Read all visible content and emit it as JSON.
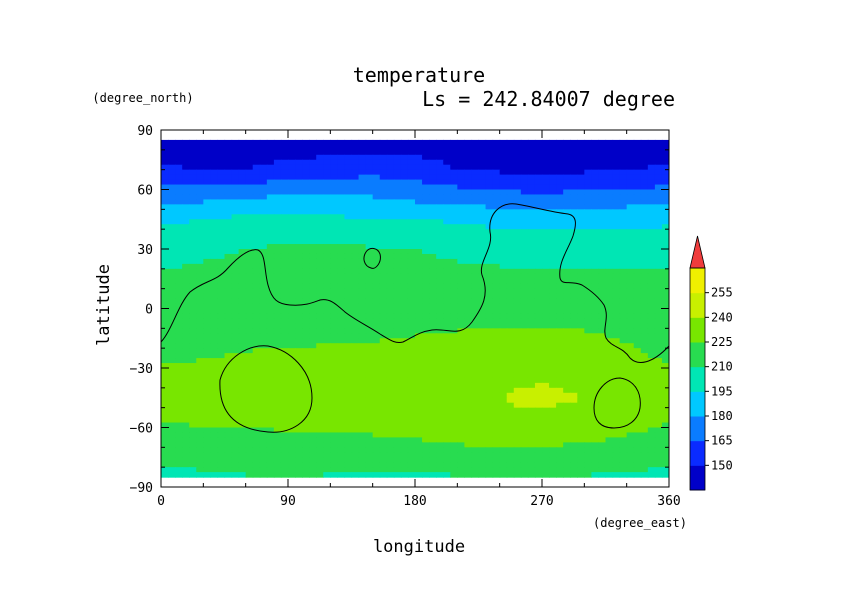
{
  "chart_data": {
    "type": "heatmap",
    "title": "temperature",
    "subtitle": "Ls = 242.84007 degree",
    "xlabel": "longitude",
    "ylabel": "latitude",
    "xunit": "(degree_east)",
    "yunit": "(degree_north)",
    "xlim": [
      0,
      360
    ],
    "ylim": [
      -90,
      90
    ],
    "xticks": [
      0,
      90,
      180,
      270,
      360
    ],
    "yticks": [
      -90,
      -60,
      -30,
      0,
      30,
      60,
      90
    ],
    "colorbar": {
      "levels": [
        150,
        165,
        180,
        195,
        210,
        225,
        240,
        255
      ],
      "labels": [
        "150",
        "165",
        "180",
        "195",
        "210",
        "225",
        "240",
        "255"
      ],
      "extend": "max"
    },
    "grid": false,
    "z_approx": {
      "description_free_samples_lon": [
        0,
        30,
        60,
        90,
        120,
        150,
        180,
        210,
        240,
        270,
        300,
        330,
        360
      ],
      "lat": [
        85,
        70,
        55,
        45,
        30,
        15,
        0,
        -15,
        -30,
        -45,
        -60,
        -75,
        -85
      ],
      "values": [
        [
          140,
          140,
          140,
          140,
          140,
          140,
          140,
          140,
          140,
          140,
          140,
          140,
          140
        ],
        [
          152,
          150,
          150,
          155,
          158,
          160,
          158,
          150,
          148,
          146,
          148,
          150,
          152
        ],
        [
          175,
          178,
          182,
          183,
          183,
          182,
          178,
          175,
          172,
          170,
          172,
          174,
          175
        ],
        [
          192,
          195,
          198,
          198,
          197,
          196,
          195,
          193,
          190,
          188,
          188,
          190,
          192
        ],
        [
          205,
          207,
          210,
          212,
          212,
          211,
          210,
          208,
          207,
          206,
          206,
          206,
          205
        ],
        [
          212,
          214,
          216,
          217,
          216,
          215,
          214,
          213,
          212,
          212,
          212,
          212,
          212
        ],
        [
          214,
          212,
          214,
          216,
          214,
          213,
          215,
          216,
          217,
          217,
          216,
          216,
          214
        ],
        [
          218,
          220,
          222,
          223,
          224,
          224,
          226,
          228,
          229,
          229,
          228,
          224,
          218
        ],
        [
          226,
          227,
          229,
          229,
          229,
          230,
          234,
          236,
          236,
          237,
          235,
          230,
          226
        ],
        [
          228,
          229,
          229,
          229,
          229,
          232,
          236,
          238,
          240,
          243,
          240,
          234,
          228
        ],
        [
          224,
          225,
          225,
          226,
          226,
          228,
          230,
          234,
          237,
          236,
          232,
          228,
          224
        ],
        [
          214,
          216,
          217,
          218,
          216,
          216,
          217,
          218,
          219,
          219,
          218,
          217,
          214
        ],
        [
          205,
          207,
          209,
          210,
          209,
          208,
          208,
          209,
          210,
          210,
          209,
          208,
          205
        ]
      ]
    }
  }
}
